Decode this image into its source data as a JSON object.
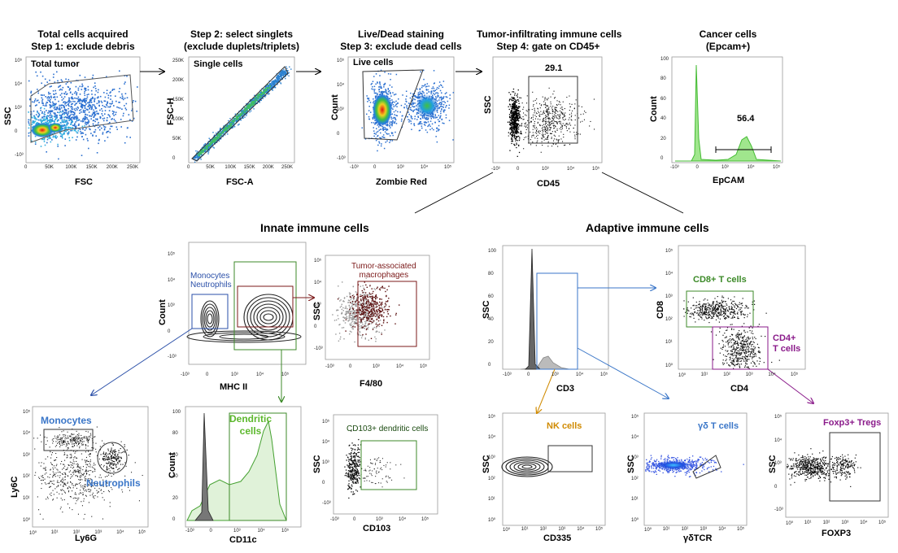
{
  "colors": {
    "black": "#000000",
    "dark_red": "#7b1a1a",
    "green": "#3c8a28",
    "blue": "#2a4fa8",
    "purple": "#8a1a8a",
    "light_blue": "#3a76c8",
    "orange": "#d08a00",
    "gray": "#888888",
    "lime": "#66cc44"
  },
  "headers": {
    "p1_line1": "Total cells acquired",
    "p1_line2": "Step 1: exclude debris",
    "p2_line1": "Step 2: select singlets",
    "p2_line2": "(exclude duplets/triplets)",
    "p3_line1": "Live/Dead staining",
    "p3_line2": "Step 3: exclude dead cells",
    "p4_line1": "Tumor-infiltrating immune cells",
    "p4_line2": "Step 4: gate on CD45+",
    "p5_line1": "Cancer cells",
    "p5_line2": "(Epcam+)"
  },
  "sections": {
    "innate": "Innate immune cells",
    "adaptive": "Adaptive immune cells"
  },
  "panels": {
    "p1": {
      "ylabel": "SSC",
      "xlabel": "FSC",
      "gate": "Total tumor"
    },
    "p2": {
      "ylabel": "FSC-H",
      "xlabel": "FSC-A",
      "gate": "Single cells"
    },
    "p3": {
      "ylabel": "Count",
      "xlabel": "Zombie Red",
      "gate": "Live cells"
    },
    "p4": {
      "ylabel": "SSC",
      "xlabel": "CD45",
      "pct": "29.1"
    },
    "p5": {
      "ylabel": "Count",
      "xlabel": "EpCAM",
      "pct": "56.4"
    },
    "mhc": {
      "ylabel": "Count",
      "xlabel": "MHC II",
      "gate_line1": "Monocytes",
      "gate_line2": "Neutrophils"
    },
    "f480": {
      "ylabel": "SSC",
      "xlabel": "F4/80",
      "gate_line1": "Tumor-associated",
      "gate_line2": "macrophages"
    },
    "ly6": {
      "ylabel": "Ly6C",
      "xlabel": "Ly6G",
      "gate1": "Monocytes",
      "gate2": "Neutrophils"
    },
    "cd11c": {
      "ylabel": "Count",
      "xlabel": "CD11c",
      "gate_line1": "Dendritic",
      "gate_line2": "cells"
    },
    "cd103": {
      "ylabel": "SSC",
      "xlabel": "CD103",
      "gate": "CD103+ dendritic cells"
    },
    "cd3": {
      "ylabel": "SSC",
      "xlabel": "CD3"
    },
    "cd8": {
      "ylabel": "CD8",
      "xlabel": "CD4",
      "gate1": "CD8+ T cells",
      "gate2_line1": "CD4+",
      "gate2_line2": "T cells"
    },
    "nk": {
      "ylabel": "SSC",
      "xlabel": "CD335",
      "gate": "NK cells"
    },
    "gd": {
      "ylabel": "SSC",
      "xlabel": "γδTCR",
      "gate": "γδ T cells"
    },
    "foxp3": {
      "ylabel": "SSC",
      "xlabel": "FOXP3",
      "gate": "Foxp3+ Tregs"
    }
  },
  "ticks": {
    "lin": [
      "0",
      "50K",
      "100K",
      "150K",
      "200K",
      "250K"
    ],
    "log": [
      "-10³",
      "0",
      "10³",
      "10⁴",
      "10⁵"
    ],
    "logy": [
      "10⁵",
      "10⁴",
      "10³",
      "0",
      "-10³"
    ],
    "log0": [
      "10⁰",
      "10¹",
      "10²",
      "10³",
      "10⁴",
      "10⁵"
    ],
    "log0y": [
      "10⁵",
      "10⁴",
      "10³",
      "10²",
      "10¹",
      "10⁰"
    ],
    "cnt": [
      "100",
      "80",
      "60",
      "40",
      "20",
      "0"
    ],
    "p1y": [
      "10⁵",
      "10⁴",
      "10³",
      "0",
      "-10³"
    ],
    "p2y": [
      "250K",
      "200K",
      "150K",
      "100K",
      "50K",
      "0"
    ]
  }
}
